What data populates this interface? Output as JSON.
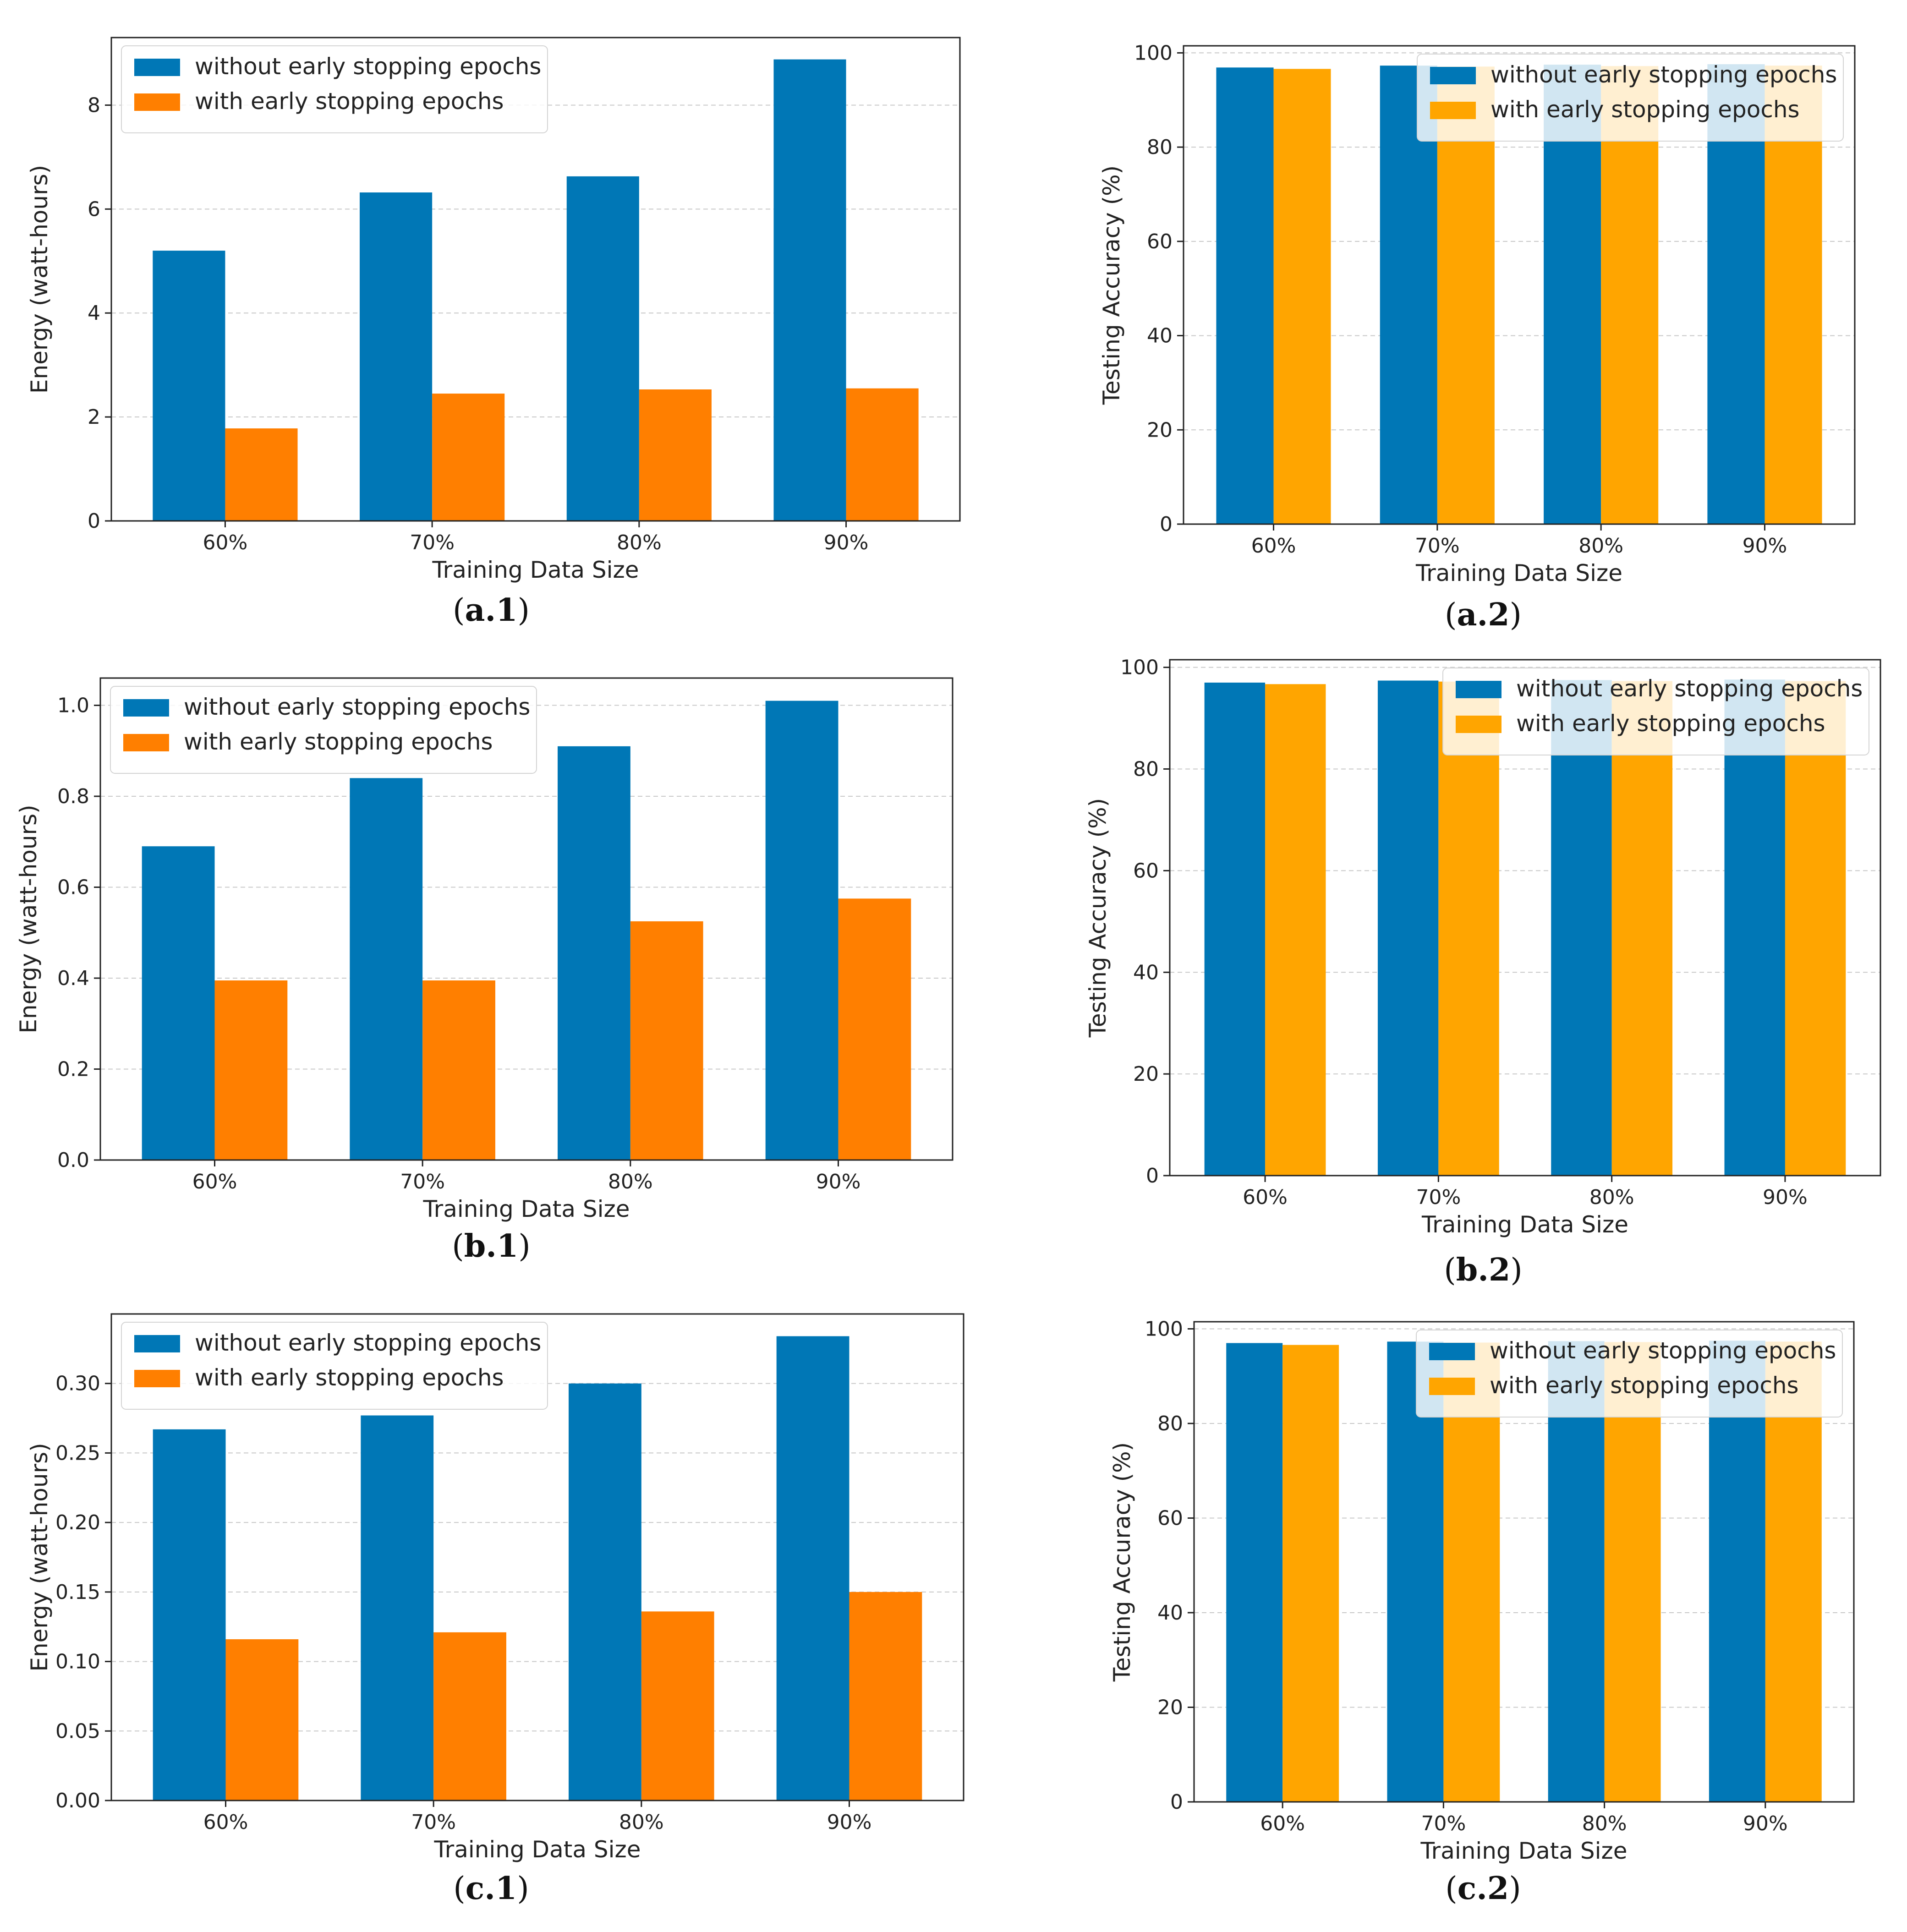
{
  "figure": {
    "colors": {
      "without_left": "#0077b6",
      "with_left": "#ff7f00",
      "without_right": "#0077b6",
      "with_right": "#ffa500",
      "grid": "#c8c8c8",
      "axis": "#222222"
    },
    "legend_labels": [
      "without early stopping epochs",
      "with early stopping epochs"
    ]
  },
  "chart_data": [
    {
      "id": "a1",
      "caption": "a.1",
      "type": "bar",
      "categories": [
        "60%",
        "70%",
        "80%",
        "90%"
      ],
      "series": [
        {
          "name": "without early stopping epochs",
          "values": [
            5.2,
            6.32,
            6.63,
            8.88
          ]
        },
        {
          "name": "with early stopping epochs",
          "values": [
            1.78,
            2.45,
            2.53,
            2.55
          ]
        }
      ],
      "xlabel": "Training Data Size",
      "ylabel": "Energy (watt-hours)",
      "ylim": [
        0,
        9.3
      ],
      "yticks": [
        0,
        2,
        4,
        6,
        8
      ],
      "yticklabels": [
        "0",
        "2",
        "4",
        "6",
        "8"
      ],
      "legend": "top-left"
    },
    {
      "id": "a2",
      "caption": "a.2",
      "type": "bar",
      "categories": [
        "60%",
        "70%",
        "80%",
        "90%"
      ],
      "series": [
        {
          "name": "without early stopping epochs",
          "values": [
            96.9,
            97.3,
            97.5,
            97.6
          ]
        },
        {
          "name": "with early stopping epochs",
          "values": [
            96.6,
            97.1,
            97.2,
            97.3
          ]
        }
      ],
      "xlabel": "Training Data Size",
      "ylabel": "Testing Accuracy (%)",
      "ylim": [
        0,
        101.5
      ],
      "yticks": [
        0,
        20,
        40,
        60,
        80,
        100
      ],
      "yticklabels": [
        "0",
        "20",
        "40",
        "60",
        "80",
        "100"
      ],
      "legend": "top-right"
    },
    {
      "id": "b1",
      "caption": "b.1",
      "type": "bar",
      "categories": [
        "60%",
        "70%",
        "80%",
        "90%"
      ],
      "series": [
        {
          "name": "without early stopping epochs",
          "values": [
            0.69,
            0.84,
            0.91,
            1.01
          ]
        },
        {
          "name": "with early stopping epochs",
          "values": [
            0.395,
            0.395,
            0.525,
            0.575
          ]
        }
      ],
      "xlabel": "Training Data Size",
      "ylabel": "Energy (watt-hours)",
      "ylim": [
        0,
        1.06
      ],
      "yticks": [
        0,
        0.2,
        0.4,
        0.6,
        0.8,
        1.0
      ],
      "yticklabels": [
        "0.0",
        "0.2",
        "0.4",
        "0.6",
        "0.8",
        "1.0"
      ],
      "legend": "top-left"
    },
    {
      "id": "b2",
      "caption": "b.2",
      "type": "bar",
      "categories": [
        "60%",
        "70%",
        "80%",
        "90%"
      ],
      "series": [
        {
          "name": "without early stopping epochs",
          "values": [
            97.0,
            97.4,
            97.5,
            97.6
          ]
        },
        {
          "name": "with early stopping epochs",
          "values": [
            96.7,
            97.2,
            97.3,
            97.3
          ]
        }
      ],
      "xlabel": "Training Data Size",
      "ylabel": "Testing Accuracy (%)",
      "ylim": [
        0,
        101.5
      ],
      "yticks": [
        0,
        20,
        40,
        60,
        80,
        100
      ],
      "yticklabels": [
        "0",
        "20",
        "40",
        "60",
        "80",
        "100"
      ],
      "legend": "top-right"
    },
    {
      "id": "c1",
      "caption": "c.1",
      "type": "bar",
      "categories": [
        "60%",
        "70%",
        "80%",
        "90%"
      ],
      "series": [
        {
          "name": "without early stopping epochs",
          "values": [
            0.267,
            0.277,
            0.3,
            0.334
          ]
        },
        {
          "name": "with early stopping epochs",
          "values": [
            0.116,
            0.121,
            0.136,
            0.15
          ]
        }
      ],
      "xlabel": "Training Data Size",
      "ylabel": "Energy (watt-hours)",
      "ylim": [
        0,
        0.35
      ],
      "yticks": [
        0,
        0.05,
        0.1,
        0.15,
        0.2,
        0.25,
        0.3
      ],
      "yticklabels": [
        "0.00",
        "0.05",
        "0.10",
        "0.15",
        "0.20",
        "0.25",
        "0.30"
      ],
      "legend": "top-left"
    },
    {
      "id": "c2",
      "caption": "c.2",
      "type": "bar",
      "categories": [
        "60%",
        "70%",
        "80%",
        "90%"
      ],
      "series": [
        {
          "name": "without early stopping epochs",
          "values": [
            97.0,
            97.3,
            97.4,
            97.5
          ]
        },
        {
          "name": "with early stopping epochs",
          "values": [
            96.6,
            97.1,
            97.2,
            97.3
          ]
        }
      ],
      "xlabel": "Training Data Size",
      "ylabel": "Testing Accuracy (%)",
      "ylim": [
        0,
        101.5
      ],
      "yticks": [
        0,
        20,
        40,
        60,
        80,
        100
      ],
      "yticklabels": [
        "0",
        "20",
        "40",
        "60",
        "80",
        "100"
      ],
      "legend": "top-right"
    }
  ]
}
